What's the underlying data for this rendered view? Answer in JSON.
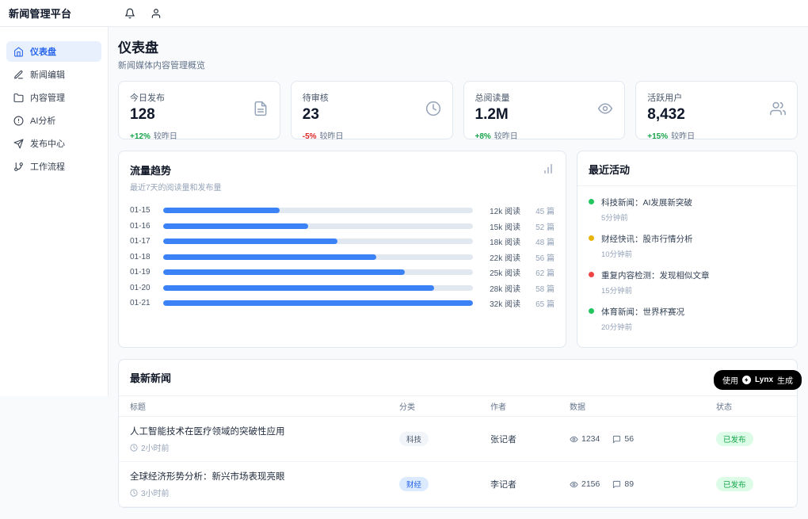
{
  "app": {
    "title": "新闻管理平台"
  },
  "sidebar": {
    "items": [
      {
        "label": "仪表盘",
        "active": true
      },
      {
        "label": "新闻编辑"
      },
      {
        "label": "内容管理"
      },
      {
        "label": "AI分析"
      },
      {
        "label": "发布中心"
      },
      {
        "label": "工作流程"
      }
    ]
  },
  "page": {
    "title": "仪表盘",
    "subtitle": "新闻媒体内容管理概览"
  },
  "stats": [
    {
      "label": "今日发布",
      "value": "128",
      "change": "+12%",
      "vs": "较昨日",
      "trend": "up"
    },
    {
      "label": "待审核",
      "value": "23",
      "change": "-5%",
      "vs": "较昨日",
      "trend": "down"
    },
    {
      "label": "总阅读量",
      "value": "1.2M",
      "change": "+8%",
      "vs": "较昨日",
      "trend": "up"
    },
    {
      "label": "活跃用户",
      "value": "8,432",
      "change": "+15%",
      "vs": "较昨日",
      "trend": "up"
    }
  ],
  "chart_data": {
    "type": "bar",
    "orientation": "horizontal",
    "title": "流量趋势",
    "subtitle": "最近7天的阅读量和发布量",
    "categories": [
      "01-15",
      "01-16",
      "01-17",
      "01-18",
      "01-19",
      "01-20",
      "01-21"
    ],
    "series": [
      {
        "name": "阅读量",
        "values": [
          12000,
          15000,
          18000,
          22000,
          25000,
          28000,
          32000
        ],
        "labels": [
          "12k 阅读",
          "15k 阅读",
          "18k 阅读",
          "22k 阅读",
          "25k 阅读",
          "28k 阅读",
          "32k 阅读"
        ]
      },
      {
        "name": "发布量",
        "values": [
          45,
          52,
          48,
          56,
          62,
          58,
          65
        ],
        "labels": [
          "45 篇",
          "52 篇",
          "48 篇",
          "56 篇",
          "62 篇",
          "58 篇",
          "65 篇"
        ]
      }
    ],
    "xlim": [
      0,
      32000
    ],
    "bar_color": "#3b82f6",
    "track_color": "#e2e8f0"
  },
  "activities": {
    "title": "最近活动",
    "items": [
      {
        "text": "科技新闻：AI发展新突破",
        "time": "5分钟前",
        "dot": "green"
      },
      {
        "text": "财经快讯：股市行情分析",
        "time": "10分钟前",
        "dot": "yellow"
      },
      {
        "text": "重复内容检测：发现相似文章",
        "time": "15分钟前",
        "dot": "red"
      },
      {
        "text": "体育新闻：世界杯赛况",
        "time": "20分钟前",
        "dot": "green"
      }
    ]
  },
  "news": {
    "title": "最新新闻",
    "columns": [
      "标题",
      "分类",
      "作者",
      "数据",
      "状态"
    ],
    "rows": [
      {
        "title": "人工智能技术在医疗领域的突破性应用",
        "time": "2小时前",
        "category": "科技",
        "cat_style": "gray",
        "author": "张记者",
        "views": "1234",
        "comments": "56",
        "status": "已发布"
      },
      {
        "title": "全球经济形势分析：新兴市场表现亮眼",
        "time": "3小时前",
        "category": "财经",
        "cat_style": "blue",
        "author": "李记者",
        "views": "2156",
        "comments": "89",
        "status": "已发布"
      }
    ]
  },
  "footer_badge": {
    "prefix": "使用",
    "brand": "Lynx",
    "suffix": "生成"
  },
  "colors": {
    "accent": "#2563eb",
    "bar": "#3b82f6",
    "up": "#16a34a",
    "down": "#dc2626"
  }
}
